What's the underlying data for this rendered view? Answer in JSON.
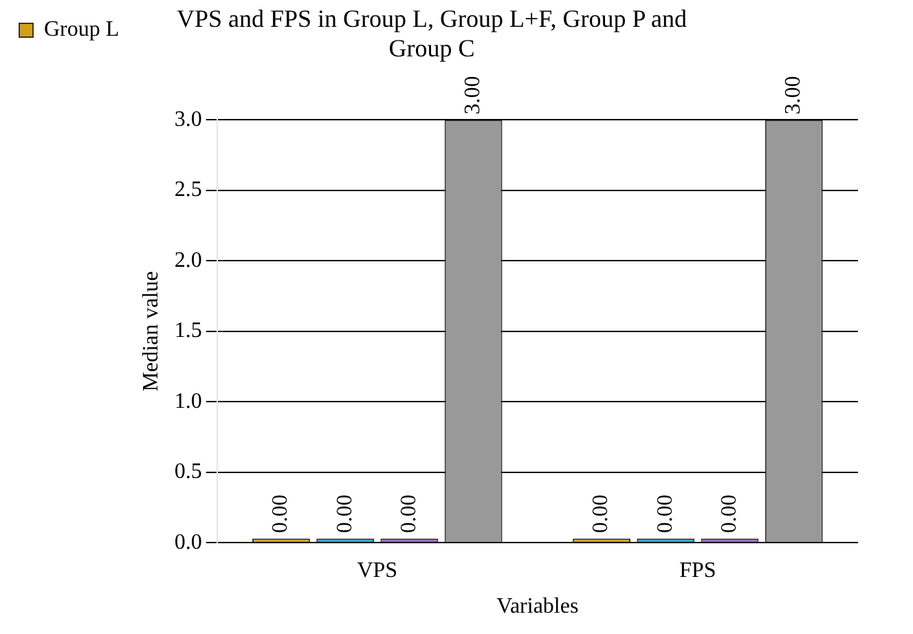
{
  "chart_data": {
    "type": "bar",
    "title": "VPS and FPS in Group L, Group L+F, Group P and Group C",
    "xlabel": "Variables",
    "ylabel": "Median value",
    "categories": [
      "VPS",
      "FPS"
    ],
    "series": [
      {
        "name": "Group L",
        "color": "#d4a017",
        "values": [
          0,
          0
        ],
        "value_labels": [
          "0.00",
          "0.00"
        ]
      },
      {
        "color": "#1fa8d8",
        "values": [
          0,
          0
        ],
        "value_labels": [
          "0.00",
          "0.00"
        ]
      },
      {
        "color": "#9966cc",
        "values": [
          0,
          0
        ],
        "value_labels": [
          "0.00",
          "0.00"
        ]
      },
      {
        "color": "#999999",
        "values": [
          3,
          3
        ],
        "value_labels": [
          "3.00",
          "3.00"
        ]
      }
    ],
    "ylim": [
      0,
      3
    ],
    "yticks": [
      {
        "value": 0,
        "label": "0.0"
      },
      {
        "value": 0.5,
        "label": "0.5"
      },
      {
        "value": 1,
        "label": "1.0"
      },
      {
        "value": 1.5,
        "label": "1.5"
      },
      {
        "value": 2,
        "label": "2.0"
      },
      {
        "value": 2.5,
        "label": "2.5"
      },
      {
        "value": 3,
        "label": "3.0"
      }
    ],
    "grid": "y",
    "legend": "left"
  }
}
